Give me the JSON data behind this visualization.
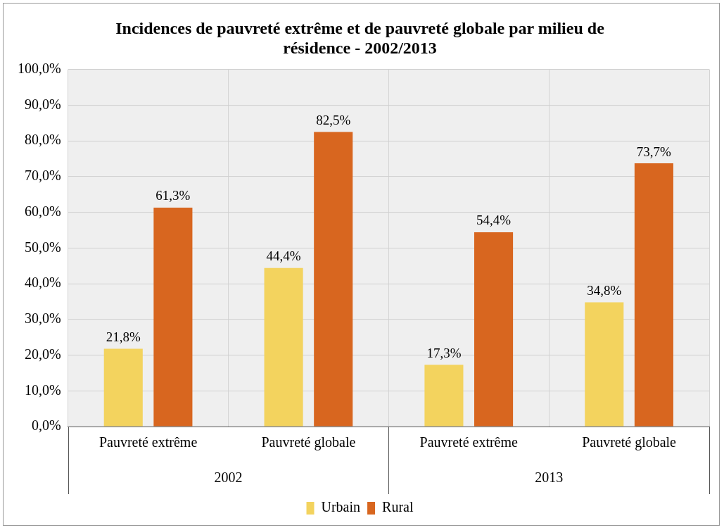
{
  "chart_data": {
    "type": "bar",
    "title": "Incidences de pauvreté extrême et de pauvreté globale par milieu de résidence - 2002/2013",
    "categories": [
      "Pauvreté extrême",
      "Pauvreté globale",
      "Pauvreté extrême",
      "Pauvreté globale"
    ],
    "annotations": [
      "2002",
      "2013"
    ],
    "series": [
      {
        "name": "Urbain",
        "color": "#f3d35e",
        "values": [
          21.8,
          44.4,
          17.3,
          34.8
        ],
        "value_labels": [
          "21,8%",
          "44,4%",
          "17,3%",
          "34,8%"
        ]
      },
      {
        "name": "Rural",
        "color": "#d8661f",
        "values": [
          61.3,
          82.5,
          54.4,
          73.7
        ],
        "value_labels": [
          "61,3%",
          "82,5%",
          "54,4%",
          "73,7%"
        ]
      }
    ],
    "ylim": [
      0,
      100
    ],
    "yticks": [
      {
        "value": 0,
        "label": "0,0%"
      },
      {
        "value": 10,
        "label": "10,0%"
      },
      {
        "value": 20,
        "label": "20,0%"
      },
      {
        "value": 30,
        "label": "30,0%"
      },
      {
        "value": 40,
        "label": "40,0%"
      },
      {
        "value": 50,
        "label": "50,0%"
      },
      {
        "value": 60,
        "label": "60,0%"
      },
      {
        "value": 70,
        "label": "70,0%"
      },
      {
        "value": 80,
        "label": "80,0%"
      },
      {
        "value": 90,
        "label": "90,0%"
      },
      {
        "value": 100,
        "label": "100,0%"
      }
    ],
    "grid": true,
    "legend": "bottom"
  }
}
